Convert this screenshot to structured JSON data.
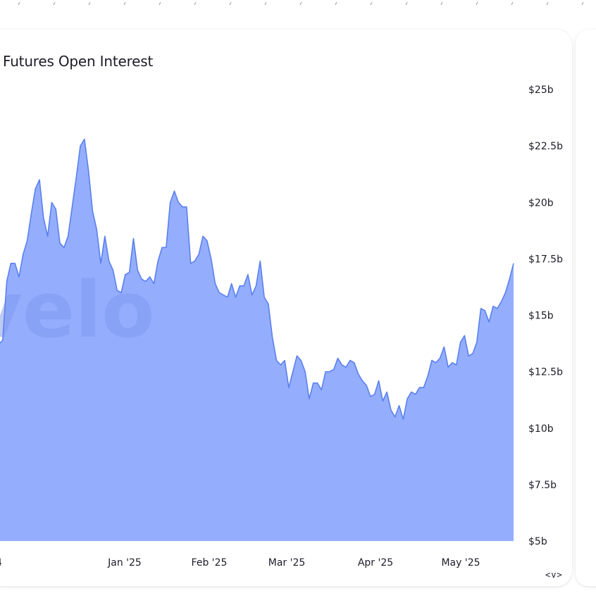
{
  "chart_data": {
    "type": "area",
    "title": "Futures Open Interest",
    "watermark": "velo",
    "x_ticks": [
      "Jan '25",
      "Feb '25",
      "Mar '25",
      "Apr '25",
      "May '25"
    ],
    "y_ticks": [
      "$5b",
      "$7.5b",
      "$10b",
      "$12.5b",
      "$15b",
      "$17.5b",
      "$20b",
      "$22.5b",
      "$25b"
    ],
    "ylim": [
      5,
      25
    ],
    "y_unit": "b",
    "grid": false,
    "series": [
      {
        "values": [
          13.7,
          13.9,
          16.5,
          17.3,
          17.3,
          16.7,
          17.7,
          18.3,
          19.5,
          20.6,
          21.0,
          19.3,
          18.5,
          20.0,
          19.7,
          18.2,
          18.0,
          18.5,
          19.8,
          21.1,
          22.5,
          22.8,
          21.4,
          19.6,
          18.8,
          17.3,
          18.5,
          17.4,
          17.0,
          16.1,
          16.0,
          16.8,
          16.9,
          18.4,
          17.0,
          16.6,
          16.5,
          16.7,
          16.4,
          17.4,
          18.0,
          18.0,
          20.0,
          20.5,
          20.0,
          19.8,
          19.8,
          17.3,
          17.4,
          17.7,
          18.5,
          18.3,
          17.5,
          16.4,
          16.0,
          15.9,
          15.8,
          16.4,
          15.8,
          16.3,
          16.3,
          16.8,
          15.9,
          16.3,
          17.4,
          15.8,
          15.5,
          14.0,
          13.0,
          12.8,
          13.0,
          11.8,
          12.5,
          13.2,
          13.0,
          12.5,
          11.3,
          12.0,
          12.0,
          11.7,
          12.5,
          12.5,
          12.6,
          13.1,
          12.8,
          12.7,
          13.0,
          12.9,
          12.4,
          12.1,
          11.9,
          11.4,
          11.5,
          12.1,
          11.2,
          11.6,
          10.8,
          10.5,
          11.0,
          10.4,
          11.3,
          11.6,
          11.5,
          11.8,
          11.8,
          12.3,
          13.0,
          12.9,
          13.1,
          13.6,
          12.7,
          12.9,
          12.8,
          13.8,
          14.1,
          13.2,
          13.3,
          13.8,
          15.3,
          15.2,
          14.7,
          15.4,
          15.3,
          15.6,
          16.0,
          16.6,
          17.3
        ]
      }
    ],
    "colors": {
      "area_fill": "#94aefd",
      "line": "#5a80ee",
      "watermark": "#6b85e6"
    }
  },
  "controls": {
    "nav_label": "<v>"
  }
}
